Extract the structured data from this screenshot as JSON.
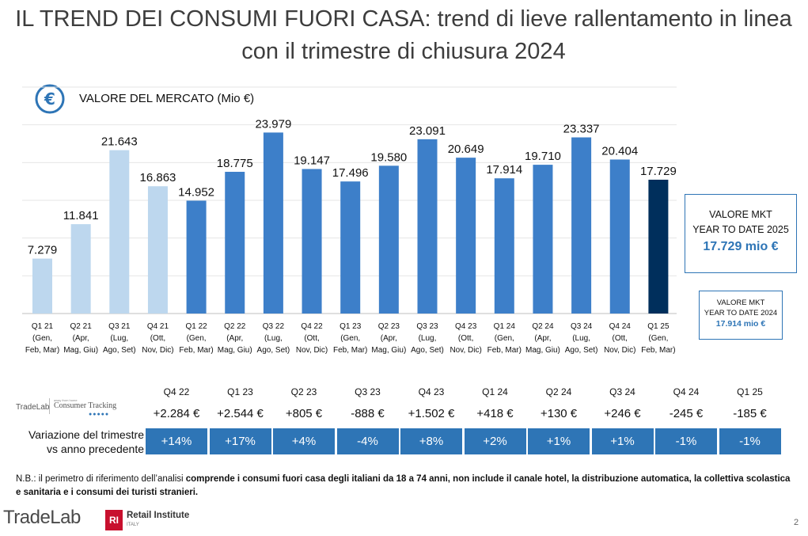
{
  "title": "IL TREND DEI CONSUMI FUORI CASA: trend di lieve rallentamento in linea con il trimestre di chiusura 2024",
  "subtitle": "VALORE DEL MERCATO (Mio €)",
  "icons": {
    "section": "euro-circle-icon"
  },
  "colors": {
    "light": "#bdd7ee",
    "mid": "#3d7fc9",
    "dark": "#002f5c",
    "accent": "#2e75b6"
  },
  "chart_data": {
    "type": "bar",
    "categories": [
      "Q1 21",
      "Q2 21",
      "Q3 21",
      "Q4 21",
      "Q1 22",
      "Q2 22",
      "Q3 22",
      "Q4 22",
      "Q1 23",
      "Q2 23",
      "Q3 23",
      "Q4 23",
      "Q1 24",
      "Q2 24",
      "Q3 24",
      "Q4 24",
      "Q1 25"
    ],
    "category_sublabels": [
      "(Gen, Feb, Mar)",
      "(Apr, Mag, Giu)",
      "(Lug, Ago, Set)",
      "(Ott, Nov, Dic)",
      "(Gen, Feb, Mar)",
      "(Apr, Mag, Giu)",
      "(Lug, Ago, Set)",
      "(Ott, Nov, Dic)",
      "(Gen, Feb, Mar)",
      "(Apr, Mag, Giu)",
      "(Lug, Ago, Set)",
      "(Ott, Nov, Dic)",
      "(Gen, Feb, Mar)",
      "(Apr, Mag, Giu)",
      "(Lug, Ago, Set)",
      "(Ott, Nov, Dic)",
      "(Gen, Feb, Mar)"
    ],
    "values": [
      7279,
      11841,
      21643,
      16863,
      14952,
      18775,
      23979,
      19147,
      17496,
      19580,
      23091,
      20649,
      17914,
      19710,
      23337,
      20404,
      17729
    ],
    "value_labels": [
      "7.279",
      "11.841",
      "21.643",
      "16.863",
      "14.952",
      "18.775",
      "23.979",
      "19.147",
      "17.496",
      "19.580",
      "23.091",
      "20.649",
      "17.914",
      "19.710",
      "23.337",
      "20.404",
      "17.729"
    ],
    "bar_color_groups": [
      "light",
      "light",
      "light",
      "light",
      "mid",
      "mid",
      "mid",
      "mid",
      "mid",
      "mid",
      "mid",
      "mid",
      "mid",
      "mid",
      "mid",
      "mid",
      "dark"
    ],
    "ylim": [
      0,
      30000
    ],
    "grid": true
  },
  "ytd": {
    "current": {
      "line1": "VALORE MKT",
      "line2": "YEAR TO DATE 2025",
      "value": "17.729 mio €"
    },
    "previous": {
      "line1": "VALORE MKT",
      "line2": "YEAR TO DATE 2024",
      "value": "17.914 mio €"
    }
  },
  "variation": {
    "label_line1": "Variazione del trimestre",
    "label_line2": "vs anno precedente",
    "quarters": [
      "Q4 22",
      "Q1 23",
      "Q2 23",
      "Q3 23",
      "Q4 23",
      "Q1 24",
      "Q2 24",
      "Q3 24",
      "Q4 24",
      "Q1 25"
    ],
    "abs": [
      "+2.284 €",
      "+2.544 €",
      "+805 €",
      "-888 €",
      "+1.502 €",
      "+418 €",
      "+130 €",
      "+246 €",
      "-245 €",
      "-185 €"
    ],
    "pct": [
      "+14%",
      "+17%",
      "+4%",
      "-4%",
      "+8%",
      "+2%",
      "+1%",
      "+1%",
      "-1%",
      "-1%"
    ]
  },
  "source_logo": {
    "brand": "TradeLab",
    "tagline": "away from home",
    "product": "Consumer Tracking",
    "dots": "●●●●●"
  },
  "footnote": {
    "plain": "N.B.: il perimetro di riferimento dell’analisi ",
    "bold": "comprende i consumi fuori casa degli italiani da 18 a 74 anni, non include il canale hotel, la distribuzione automatica, la collettiva scolastica e sanitaria e i consumi dei turisti stranieri."
  },
  "footer": {
    "tradelab": "TradeLab",
    "ri_badge": "RI",
    "ri_name": "Retail Institute",
    "ri_sub": "ITALY",
    "page": "2"
  }
}
